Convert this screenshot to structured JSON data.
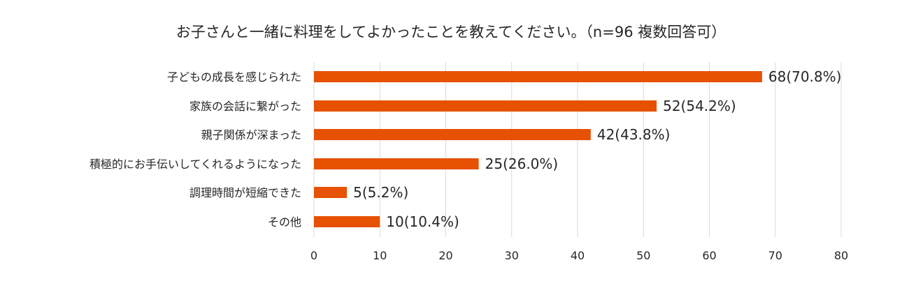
{
  "chart_data": {
    "type": "bar",
    "orientation": "horizontal",
    "title": "お子さんと一緒に料理をしてよかったことを教えてください。（n=96  複数回答可）",
    "categories": [
      "子どもの成長を感じられた",
      "家族の会話に繋がった",
      "親子関係が深まった",
      "積極的にお手伝いしてくれるようになった",
      "調理時間が短縮できた",
      "その他"
    ],
    "values": [
      68,
      52,
      42,
      25,
      5,
      10
    ],
    "data_labels": [
      "68(70.8%)",
      "52(54.2%)",
      "42(43.8%)",
      "25(26.0%)",
      "5(5.2%)",
      "10(10.4%)"
    ],
    "xlim": [
      0,
      80
    ],
    "xticks": [
      "0",
      "10",
      "20",
      "30",
      "40",
      "50",
      "60",
      "70",
      "80"
    ],
    "grid": "vertical",
    "bar_color": "#E65104",
    "grid_color": "#D9D9D9"
  }
}
